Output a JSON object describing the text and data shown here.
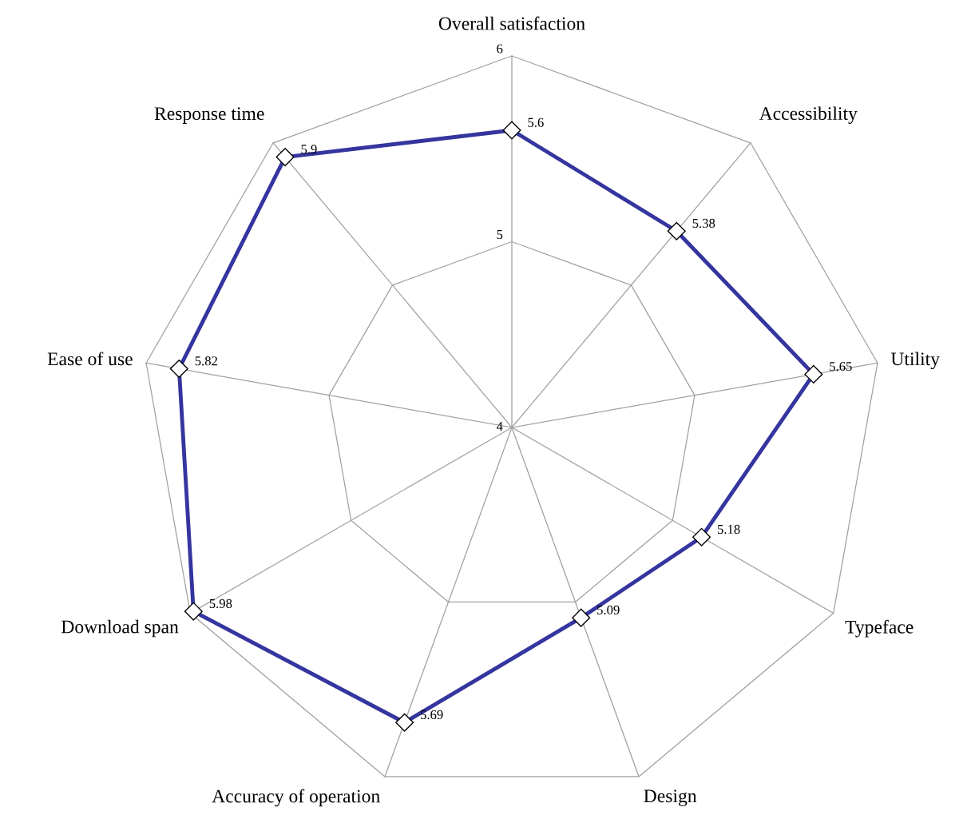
{
  "chart_data": {
    "type": "radar",
    "categories": [
      "Overall satisfaction",
      "Accessibility",
      "Utility",
      "Typeface",
      "Design",
      "Accuracy of operation",
      "Download span",
      "Ease of use",
      "Response time"
    ],
    "series": [
      {
        "color": "#35359f",
        "values": [
          5.6,
          5.38,
          5.65,
          5.18,
          5.09,
          5.69,
          5.98,
          5.82,
          5.9
        ]
      }
    ],
    "ylim": [
      4,
      6
    ],
    "yticks": [
      4,
      5,
      6
    ],
    "grid": true,
    "marker": "diamond",
    "line_style": "solid",
    "data_labels": true
  }
}
